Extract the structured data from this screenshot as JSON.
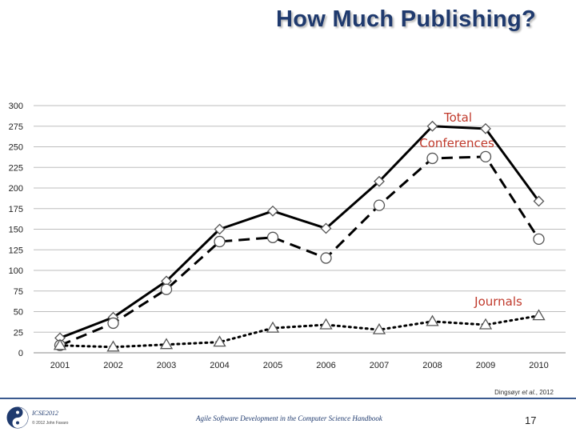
{
  "slide": {
    "title": "How Much Publishing?",
    "citation_author": "Dingsøyr",
    "citation_etal": "et al.",
    "citation_year": ", 2012",
    "conference": "ICSE2012",
    "copyright": "© 2012 John Favaro",
    "book": "Agile Software Development in the Computer Science Handbook",
    "page_number": "17"
  },
  "chart_data": {
    "type": "line",
    "title": "",
    "xlabel": "",
    "ylabel": "",
    "x": [
      "2001",
      "2002",
      "2003",
      "2004",
      "2005",
      "2006",
      "2007",
      "2008",
      "2009",
      "2010"
    ],
    "ylim": [
      0,
      300
    ],
    "yticks": [
      0,
      25,
      50,
      75,
      100,
      125,
      150,
      175,
      200,
      225,
      250,
      275,
      300
    ],
    "grid": true,
    "series": [
      {
        "name": "Total",
        "marker": "diamond",
        "line": "solid",
        "color": "#000000",
        "values": [
          18,
          43,
          87,
          150,
          172,
          151,
          208,
          275,
          272,
          184
        ]
      },
      {
        "name": "Conferences",
        "marker": "circle",
        "line": "dashed",
        "color": "#000000",
        "values": [
          9,
          36,
          77,
          135,
          140,
          115,
          179,
          236,
          238,
          138
        ]
      },
      {
        "name": "Journals",
        "marker": "triangle",
        "line": "dotted",
        "color": "#000000",
        "values": [
          9,
          7,
          10,
          13,
          30,
          34,
          28,
          38,
          34,
          45
        ]
      }
    ],
    "annotation_color": "#c0392b"
  }
}
